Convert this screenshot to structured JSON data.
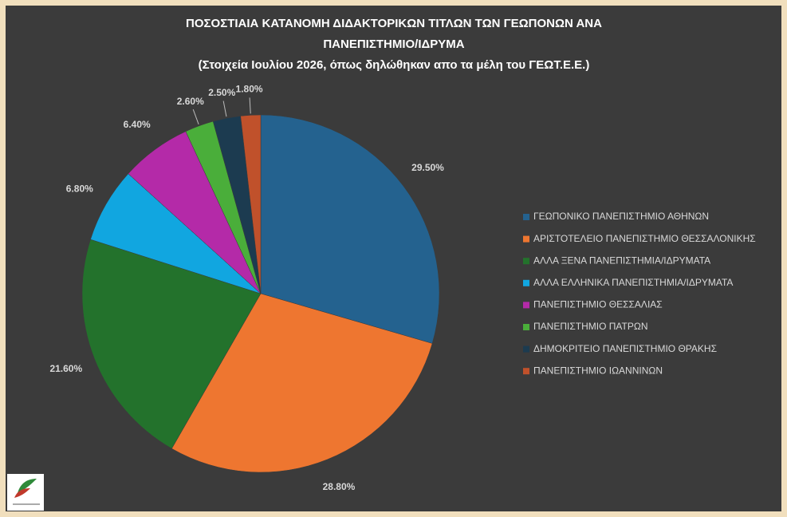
{
  "chart_data": {
    "type": "pie",
    "title": [
      "ΠΟΣΟΣΤΙΑΙΑ ΚΑΤΑΝΟΜΗ ΔΙΔΑΚΤΟΡΙΚΩΝ ΤΙΤΛΩΝ ΤΩΝ ΓΕΩΠΟΝΩΝ ΑΝΑ",
      "ΠΑΝΕΠΙΣΤΗΜΙΟ/ΙΔΡΥΜΑ"
    ],
    "subtitle": "(Στοιχεία Ιουλίου 2026, όπως δηλώθηκαν απο τα μέλη του ΓΕΩΤ.Ε.Ε.)",
    "categories": [
      "ΓΕΩΠΟΝΙΚΟ ΠΑΝΕΠΙΣΤΗΜΙΟ ΑΘΗΝΩΝ",
      "ΑΡΙΣΤΟΤΕΛΕΙΟ ΠΑΝΕΠΙΣΤΗΜΙΟ ΘΕΣΣΑΛΟΝΙΚΗΣ",
      "ΑΛΛΑ ΞΕΝΑ ΠΑΝΕΠΙΣΤΗΜΙΑ/ΙΔΡΥΜΑΤΑ",
      "ΑΛΛΑ ΕΛΛΗΝΙΚΑ ΠΑΝΕΠΙΣΤΗΜΙΑ/ΙΔΡΥΜΑΤΑ",
      "ΠΑΝΕΠΙΣΤΗΜΙΟ ΘΕΣΣΑΛΙΑΣ",
      "ΠΑΝΕΠΙΣΤΗΜΙΟ ΠΑΤΡΩΝ",
      "ΔΗΜΟΚΡΙΤΕΙΟ ΠΑΝΕΠΙΣΤΗΜΙΟ ΘΡΑΚΗΣ",
      "ΠΑΝΕΠΙΣΤΗΜΙΟ ΙΩΑΝΝΙΝΩΝ"
    ],
    "values": [
      29.5,
      28.8,
      21.6,
      6.8,
      6.4,
      2.6,
      2.5,
      1.8
    ],
    "value_labels": [
      "29.50%",
      "28.80%",
      "21.60%",
      "6.80%",
      "6.40%",
      "2.60%",
      "2.50%",
      "1.80%"
    ],
    "colors": [
      "#24628f",
      "#ee7630",
      "#23722c",
      "#11a6e0",
      "#b42aa8",
      "#4aae3a",
      "#1c3b50",
      "#c0512b"
    ],
    "legend": "right"
  }
}
